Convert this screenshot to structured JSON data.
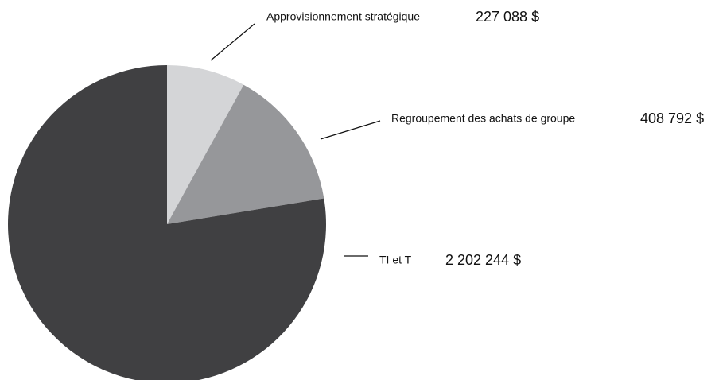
{
  "chart_data": {
    "type": "pie",
    "categories": [
      "Approvisionnement stratégique",
      "Regroupement des achats de groupe",
      "TI et T"
    ],
    "values": [
      227088,
      408792,
      2202244
    ],
    "value_labels": [
      "227 088 $",
      "408 792 $",
      "2 202 244 $"
    ],
    "colors": [
      "#d4d5d7",
      "#96979a",
      "#404042"
    ]
  }
}
